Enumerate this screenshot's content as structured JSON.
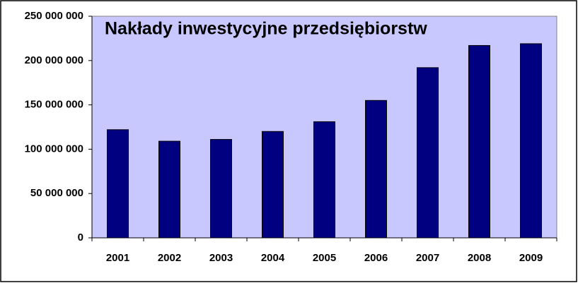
{
  "chart_data": {
    "type": "bar",
    "title": "Nakłady inwestycyjne przedsiębiorstw",
    "categories": [
      "2001",
      "2002",
      "2003",
      "2004",
      "2005",
      "2006",
      "2007",
      "2008",
      "2009"
    ],
    "values": [
      122000000,
      109000000,
      111000000,
      120000000,
      131000000,
      155000000,
      192000000,
      217000000,
      219000000
    ],
    "color": "#000080",
    "ylim": [
      0,
      250000000
    ],
    "yticks": [
      0,
      {
        "value": 50000000,
        "label": "50 000 000"
      },
      {
        "value": 100000000,
        "label": "100 000 000"
      },
      {
        "value": 150000000,
        "label": "150 000 000"
      },
      {
        "value": 200000000,
        "label": "200 000 000"
      },
      {
        "value": 250000000,
        "label": "250 000 000"
      }
    ],
    "grid": false
  }
}
